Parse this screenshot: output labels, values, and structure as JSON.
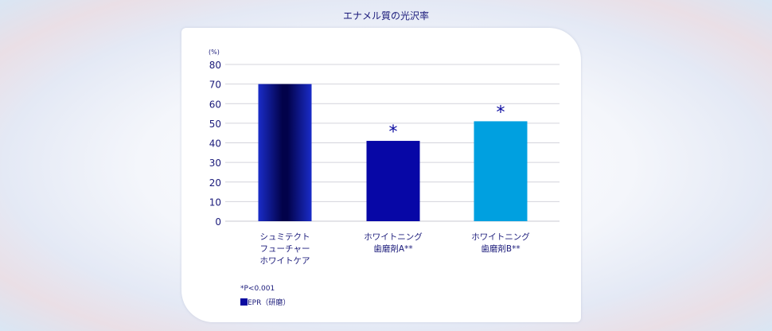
{
  "chart_data": {
    "type": "bar",
    "title": "エナメル質の光沢率",
    "ylabel": "(%)",
    "ylim": [
      0,
      80
    ],
    "yticks": [
      0,
      10,
      20,
      30,
      40,
      50,
      60,
      70,
      80
    ],
    "grid": true,
    "categories": [
      [
        "シュミテクト",
        "フューチャー",
        "ホワイトケア"
      ],
      [
        "ホワイトニング",
        "歯磨剤A**"
      ],
      [
        "ホワイトニング",
        "歯磨剤B**"
      ]
    ],
    "values": [
      70,
      41,
      51
    ],
    "colors": [
      "#0a0a8c",
      "#0707a6",
      "#00a0e0"
    ],
    "significance": [
      "",
      "*",
      "*"
    ],
    "footnote": "*P<0.001",
    "legend": "EPR（研磨）",
    "legend_color": "#0a0aa0"
  }
}
